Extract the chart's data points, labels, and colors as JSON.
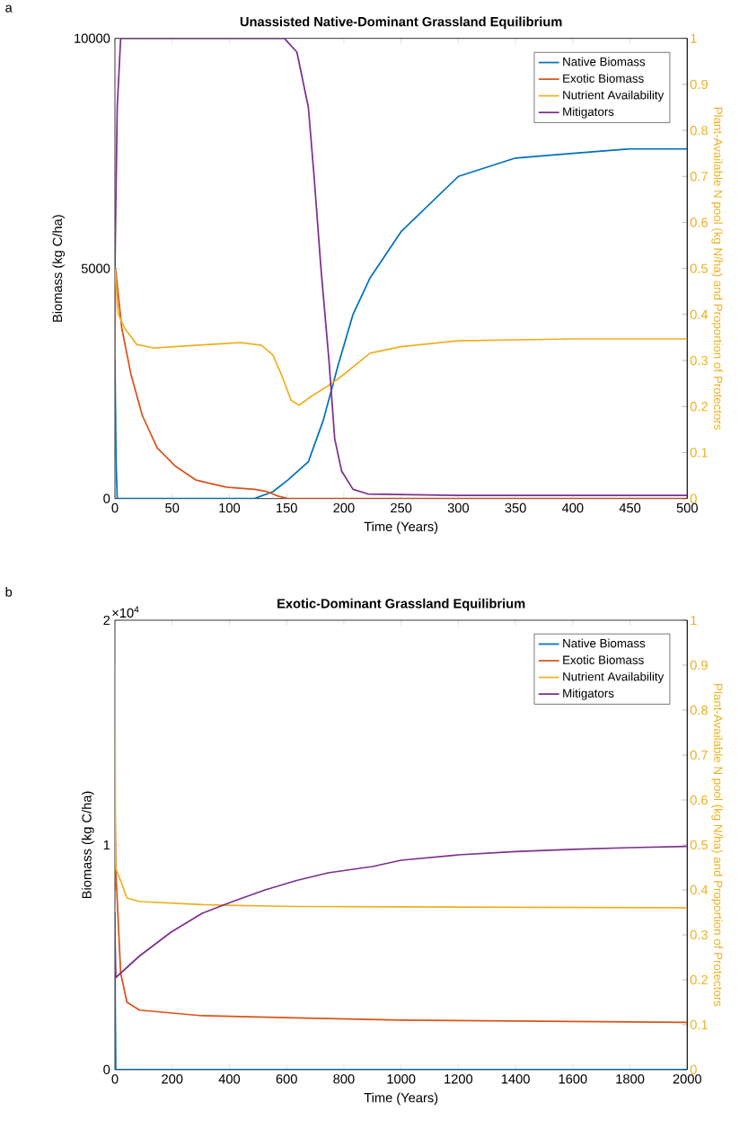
{
  "chart_data": [
    {
      "type": "line",
      "title": "Unassisted Native-Dominant Grassland Equilibrium",
      "xlabel": "Time (Years)",
      "ylabel": "Biomass (kg C/ha)",
      "y2label": "Plant-Available N pool (kg N/ha) and Proportion of Protectors",
      "annotations": [
        "a"
      ],
      "xlim": [
        0,
        500
      ],
      "xticks": [
        0,
        50,
        100,
        150,
        200,
        250,
        300,
        350,
        400,
        450,
        500
      ],
      "ylim": [
        0,
        10000
      ],
      "yticks": [
        0,
        5000,
        10000
      ],
      "y2lim": [
        0,
        1
      ],
      "y2ticks": [
        0,
        0.1,
        0.2,
        0.3,
        0.4,
        0.5,
        0.6,
        0.7,
        0.8,
        0.9,
        1
      ],
      "legend": "top right",
      "series": [
        {
          "name": "Native Biomass",
          "color": "#0072bd",
          "x": [
            0,
            1,
            2,
            50,
            122,
            138,
            151,
            169,
            182,
            195,
            208,
            223,
            250,
            300,
            350,
            400,
            450,
            500
          ],
          "values": [
            3000,
            800,
            0,
            0,
            0,
            150,
            400,
            800,
            1700,
            2900,
            4000,
            4800,
            5800,
            7000,
            7400,
            7500,
            7600,
            7600
          ]
        },
        {
          "name": "Exotic Biomass",
          "color": "#d95319",
          "x": [
            0,
            0.5,
            6,
            14,
            24,
            37,
            53,
            71,
            97,
            122,
            133,
            143,
            151,
            300,
            500
          ],
          "values": [
            3000,
            5000,
            3700,
            2700,
            1800,
            1100,
            700,
            400,
            250,
            200,
            150,
            50,
            0,
            0,
            0
          ]
        },
        {
          "name": "Nutrient Availability",
          "color": "#edb120",
          "axis": "y2",
          "x": [
            0,
            3,
            8.5,
            19,
            34,
            71,
            110,
            128,
            138,
            146,
            154,
            161,
            172,
            185,
            195,
            223,
            250,
            300,
            400,
            500
          ],
          "values": [
            0.5,
            0.4,
            0.37,
            0.335,
            0.327,
            0.333,
            0.339,
            0.333,
            0.312,
            0.266,
            0.213,
            0.203,
            0.223,
            0.243,
            0.26,
            0.316,
            0.33,
            0.343,
            0.347,
            0.347
          ]
        },
        {
          "name": "Mitigators",
          "color": "#7e2f8e",
          "axis": "y2",
          "x": [
            0,
            2,
            5,
            148,
            159,
            169,
            174,
            180,
            187,
            192,
            198,
            208,
            221,
            300,
            500
          ],
          "values": [
            0.5,
            0.85,
            1,
            1,
            0.97,
            0.85,
            0.7,
            0.5,
            0.3,
            0.13,
            0.06,
            0.02,
            0.01,
            0.007,
            0.007
          ]
        }
      ]
    },
    {
      "type": "line",
      "title": "Exotic-Dominant Grassland Equilibrium",
      "xlabel": "Time (Years)",
      "ylabel": "Biomass (kg C/ha)",
      "y2label": "Plant-Available N pool (kg N/ha) and Proportion of Protectors",
      "annotations": [
        "b",
        "×10$^{4}$"
      ],
      "xlim": [
        0,
        2000
      ],
      "xticks": [
        0,
        200,
        400,
        600,
        800,
        1000,
        1200,
        1400,
        1600,
        1800,
        2000
      ],
      "ylim": [
        0,
        2
      ],
      "yticks": [
        0,
        1,
        2
      ],
      "y2lim": [
        0,
        1
      ],
      "y2ticks": [
        0,
        0.1,
        0.2,
        0.3,
        0.4,
        0.5,
        0.6,
        0.7,
        0.8,
        0.9,
        1
      ],
      "legend": "top right",
      "series": [
        {
          "name": "Native Biomass",
          "color": "#0072bd",
          "x": [
            0,
            1,
            3,
            2000
          ],
          "values": [
            0.7,
            0.3,
            0,
            0
          ]
        },
        {
          "name": "Exotic Biomass",
          "color": "#d95319",
          "x": [
            0,
            0.5,
            3,
            20,
            42,
            86,
            305,
            635,
            1000,
            1500,
            2000
          ],
          "values": [
            0.8,
            1.15,
            0.89,
            0.43,
            0.3,
            0.265,
            0.24,
            0.23,
            0.22,
            0.215,
            0.21
          ]
        },
        {
          "name": "Nutrient Availability",
          "color": "#edb120",
          "axis": "y2",
          "x": [
            0,
            2,
            20,
            42,
            86,
            305,
            635,
            1000,
            1500,
            2000
          ],
          "values": [
            0.9,
            0.45,
            0.42,
            0.382,
            0.374,
            0.367,
            0.363,
            0.362,
            0.361,
            0.36
          ]
        },
        {
          "name": "Mitigators",
          "color": "#7e2f8e",
          "axis": "y2",
          "x": [
            0,
            3,
            86,
            196,
            305,
            415,
            525,
            635,
            745,
            900,
            1000,
            1200,
            1400,
            1600,
            1800,
            2000
          ],
          "values": [
            0.3,
            0.205,
            0.253,
            0.306,
            0.348,
            0.375,
            0.4,
            0.421,
            0.438,
            0.452,
            0.466,
            0.478,
            0.485,
            0.49,
            0.494,
            0.497
          ]
        }
      ]
    }
  ]
}
